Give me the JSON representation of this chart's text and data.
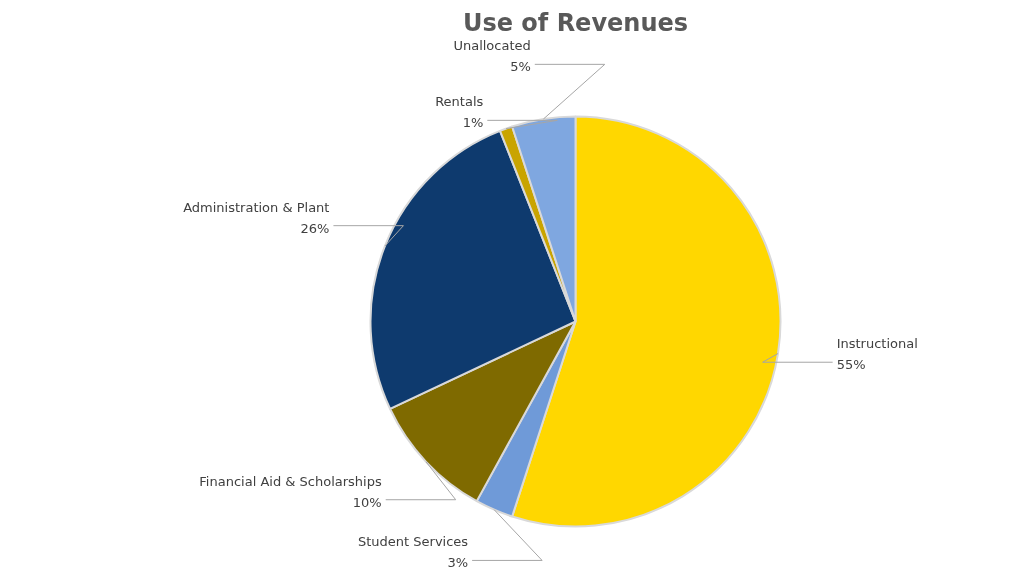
{
  "chart_data": {
    "type": "pie",
    "title": "Use of Revenues",
    "categories": [
      "Instructional",
      "Student Services",
      "Financial Aid & Scholarships",
      "Administration & Plant",
      "Rentals",
      "Unallocated"
    ],
    "values": [
      55,
      3,
      10,
      26,
      1,
      5
    ],
    "colors": [
      "#ffd700",
      "#6f9ad8",
      "#7f6a00",
      "#0e3a6e",
      "#c9a400",
      "#7fa7e0"
    ],
    "value_labels": [
      "55%",
      "3%",
      "10%",
      "26%",
      "1%",
      "5%"
    ]
  }
}
